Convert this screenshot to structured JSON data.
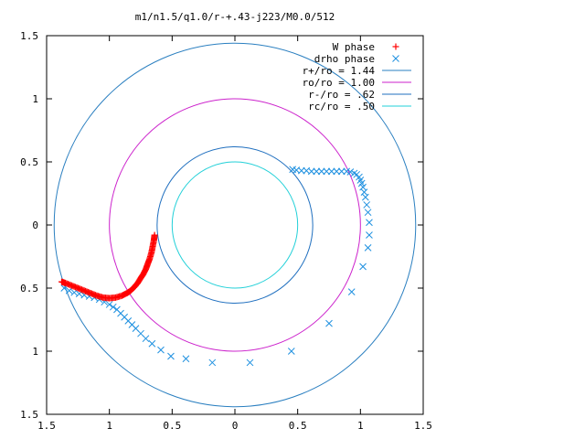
{
  "chart_data": {
    "type": "scatter",
    "title": "m1/n1.5/q1.0/r-+.43-j223/M0.0/512",
    "xlim": [
      -1.5,
      1.5
    ],
    "ylim": [
      -1.5,
      1.5
    ],
    "x_ticks": [
      -1.5,
      -1,
      -0.5,
      0,
      0.5,
      1,
      1.5
    ],
    "y_ticks": [
      -1.5,
      -1,
      -0.5,
      0,
      0.5,
      1,
      1.5
    ],
    "x_tick_labels": [
      "1.5",
      "1",
      "0.5",
      "0",
      "0.5",
      "1",
      "1.5"
    ],
    "y_tick_labels": [
      "1.5",
      "1",
      "0.5",
      "0",
      "0.5",
      "1",
      "1.5"
    ],
    "grid": false,
    "legend_position": "top-right",
    "series": [
      {
        "name": "W phase",
        "marker": "+",
        "color": "#ff0000",
        "points": [
          [
            -0.64,
            -0.08
          ],
          [
            -0.645,
            -0.12
          ],
          [
            -0.655,
            -0.17
          ],
          [
            -0.665,
            -0.22
          ],
          [
            -0.68,
            -0.27
          ],
          [
            -0.695,
            -0.31
          ],
          [
            -0.71,
            -0.35
          ],
          [
            -0.73,
            -0.39
          ],
          [
            -0.75,
            -0.42
          ],
          [
            -0.775,
            -0.46
          ],
          [
            -0.8,
            -0.49
          ],
          [
            -0.83,
            -0.52
          ],
          [
            -0.86,
            -0.54
          ],
          [
            -0.9,
            -0.56
          ],
          [
            -0.95,
            -0.575
          ],
          [
            -1.0,
            -0.58
          ],
          [
            -1.05,
            -0.575
          ],
          [
            -1.1,
            -0.56
          ],
          [
            -1.15,
            -0.54
          ],
          [
            -1.2,
            -0.52
          ],
          [
            -1.25,
            -0.5
          ],
          [
            -1.3,
            -0.48
          ],
          [
            -1.35,
            -0.46
          ],
          [
            -1.38,
            -0.45
          ]
        ]
      },
      {
        "name": "drho phase",
        "marker": "x",
        "color": "#1e90e0",
        "points": [
          [
            -1.36,
            -0.5
          ],
          [
            -1.32,
            -0.52
          ],
          [
            -1.28,
            -0.535
          ],
          [
            -1.24,
            -0.545
          ],
          [
            -1.2,
            -0.555
          ],
          [
            -1.16,
            -0.565
          ],
          [
            -1.12,
            -0.575
          ],
          [
            -1.08,
            -0.59
          ],
          [
            -1.04,
            -0.61
          ],
          [
            -1.0,
            -0.63
          ],
          [
            -0.97,
            -0.65
          ],
          [
            -0.94,
            -0.67
          ],
          [
            -0.91,
            -0.7
          ],
          [
            -0.88,
            -0.73
          ],
          [
            -0.85,
            -0.76
          ],
          [
            -0.82,
            -0.79
          ],
          [
            -0.79,
            -0.82
          ],
          [
            -0.75,
            -0.86
          ],
          [
            -0.71,
            -0.9
          ],
          [
            -0.66,
            -0.94
          ],
          [
            -0.59,
            -0.99
          ],
          [
            -0.51,
            -1.04
          ],
          [
            -0.39,
            -1.06
          ],
          [
            -0.18,
            -1.09
          ],
          [
            0.12,
            -1.09
          ],
          [
            0.45,
            -1.0
          ],
          [
            0.75,
            -0.78
          ],
          [
            0.93,
            -0.53
          ],
          [
            1.02,
            -0.33
          ],
          [
            1.06,
            -0.18
          ],
          [
            1.07,
            -0.08
          ],
          [
            1.07,
            0.02
          ],
          [
            1.06,
            0.1
          ],
          [
            1.05,
            0.16
          ],
          [
            1.04,
            0.22
          ],
          [
            1.03,
            0.26
          ],
          [
            1.02,
            0.3
          ],
          [
            1.01,
            0.33
          ],
          [
            1.0,
            0.355
          ],
          [
            0.99,
            0.38
          ],
          [
            0.97,
            0.4
          ],
          [
            0.95,
            0.41
          ],
          [
            0.92,
            0.42
          ],
          [
            0.89,
            0.425
          ],
          [
            0.85,
            0.425
          ],
          [
            0.81,
            0.425
          ],
          [
            0.77,
            0.425
          ],
          [
            0.73,
            0.425
          ],
          [
            0.69,
            0.425
          ],
          [
            0.65,
            0.425
          ],
          [
            0.61,
            0.425
          ],
          [
            0.57,
            0.43
          ],
          [
            0.53,
            0.43
          ],
          [
            0.49,
            0.435
          ],
          [
            0.46,
            0.44
          ]
        ]
      }
    ],
    "circles": [
      {
        "name": "r+/ro = 1.44",
        "r": 1.44,
        "color": "#2a7fc0"
      },
      {
        "name": "ro/ro = 1.00",
        "r": 1.0,
        "color": "#cc22cc"
      },
      {
        "name": "r-/ro = .62",
        "r": 0.62,
        "color": "#1f6fbf"
      },
      {
        "name": "rc/ro = .50",
        "r": 0.5,
        "color": "#22d0d8"
      }
    ]
  }
}
